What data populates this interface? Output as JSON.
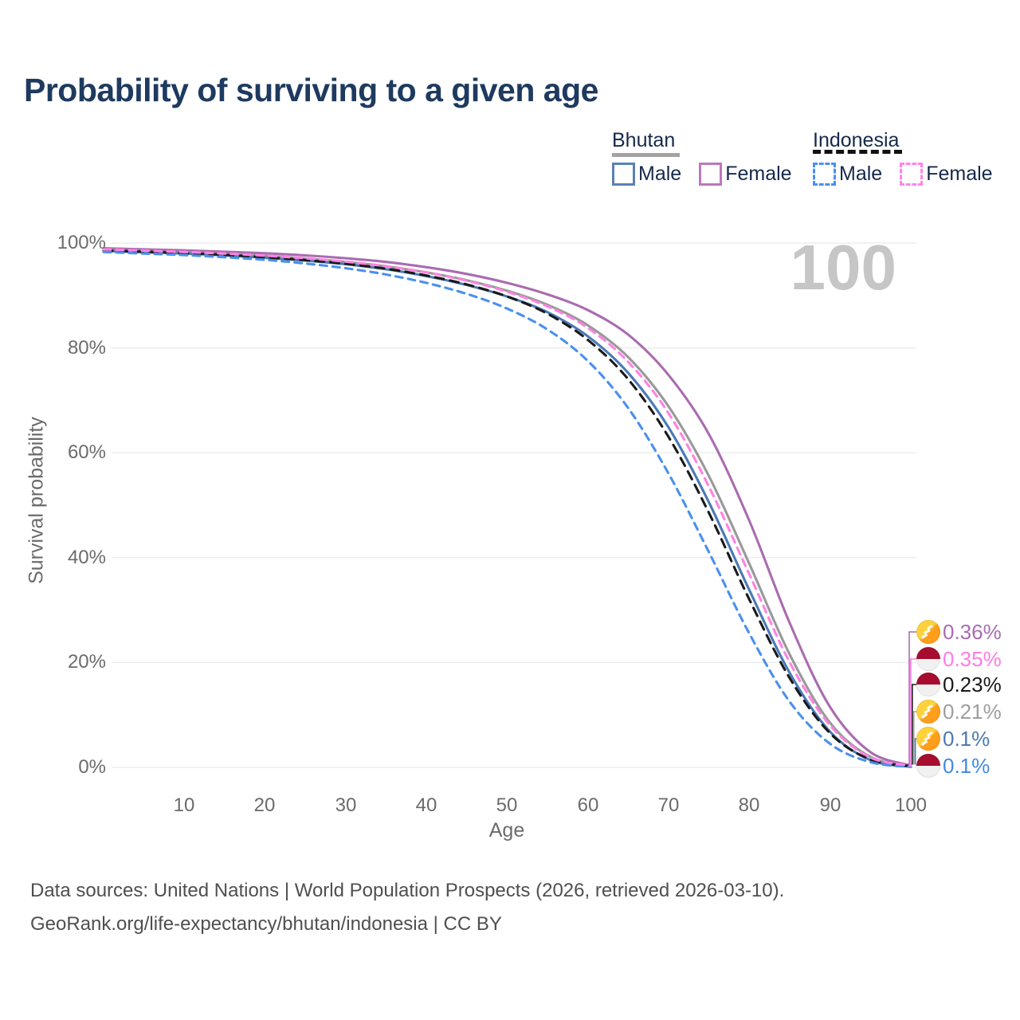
{
  "title": "Probability of surviving to a given age",
  "watermark_age": "100",
  "legend": {
    "groups": [
      {
        "label": "Bhutan",
        "line_style": "solid",
        "items": [
          {
            "label": "Male",
            "color": "#5a81b4"
          },
          {
            "label": "Female",
            "color": "#bd77bd"
          }
        ]
      },
      {
        "label": "Indonesia",
        "line_style": "dashed",
        "items": [
          {
            "label": "Male",
            "color": "#4a90ee"
          },
          {
            "label": "Female",
            "color": "#ff85e6"
          }
        ]
      }
    ]
  },
  "chart_data": {
    "type": "line",
    "title": "Probability of surviving to a given age",
    "xlabel": "Age",
    "ylabel": "Survival probability",
    "xlim": [
      0,
      100
    ],
    "ylim": [
      0,
      100
    ],
    "grid": "horizontal",
    "legend_position": "top-right",
    "xticklabels": [
      "10",
      "20",
      "30",
      "40",
      "50",
      "60",
      "70",
      "80",
      "90",
      "100"
    ],
    "xticks": [
      10,
      20,
      30,
      40,
      50,
      60,
      70,
      80,
      90,
      100
    ],
    "yticklabels": [
      "0%",
      "20%",
      "40%",
      "60%",
      "80%",
      "100%"
    ],
    "yticks": [
      0,
      20,
      40,
      60,
      80,
      100
    ],
    "x": [
      0,
      5,
      10,
      15,
      20,
      25,
      30,
      35,
      40,
      45,
      50,
      55,
      60,
      65,
      70,
      75,
      80,
      85,
      90,
      95,
      100
    ],
    "series": [
      {
        "name": "Bhutan Total",
        "country": "Bhutan",
        "group": "Total",
        "color": "#999999",
        "dash": "solid",
        "values": [
          98.7,
          98.5,
          98.25,
          97.95,
          97.55,
          97.05,
          96.4,
          95.55,
          94.4,
          92.9,
          90.9,
          88.2,
          84.3,
          78.2,
          68.8,
          55.5,
          38.8,
          21.5,
          8.5,
          2.0,
          0.21
        ]
      },
      {
        "name": "Bhutan Female",
        "country": "Bhutan",
        "group": "Female",
        "color": "#a96cb0",
        "dash": "solid",
        "values": [
          99.0,
          98.8,
          98.6,
          98.35,
          98.05,
          97.65,
          97.1,
          96.4,
          95.4,
          94.1,
          92.4,
          90.2,
          87.2,
          82.5,
          74.8,
          63.5,
          47.0,
          27.5,
          11.5,
          2.9,
          0.36
        ]
      },
      {
        "name": "Bhutan Male",
        "country": "Bhutan",
        "group": "Male",
        "color": "#4a7ab5",
        "dash": "solid",
        "values": [
          98.5,
          98.25,
          98.0,
          97.65,
          97.2,
          96.65,
          95.95,
          95.0,
          93.7,
          92.0,
          89.8,
          86.8,
          82.2,
          75.2,
          64.8,
          50.5,
          33.8,
          18.0,
          6.8,
          1.4,
          0.1
        ]
      },
      {
        "name": "Indonesia Total",
        "country": "Indonesia",
        "group": "Total",
        "color": "#1a1a1a",
        "dash": "dashed",
        "values": [
          98.6,
          98.35,
          98.1,
          97.75,
          97.3,
          96.75,
          96.05,
          95.1,
          93.8,
          92.1,
          89.8,
          86.5,
          81.5,
          74.0,
          63.0,
          48.5,
          32.0,
          17.0,
          6.5,
          1.5,
          0.23
        ]
      },
      {
        "name": "Indonesia Male",
        "country": "Indonesia",
        "group": "Male",
        "color": "#4a90ee",
        "dash": "dashed",
        "values": [
          98.3,
          98.0,
          97.7,
          97.3,
          96.8,
          96.1,
          95.2,
          94.0,
          92.4,
          90.3,
          87.5,
          83.5,
          77.5,
          68.5,
          56.0,
          41.0,
          25.5,
          12.5,
          4.5,
          1.0,
          0.1
        ]
      },
      {
        "name": "Indonesia Female",
        "country": "Indonesia",
        "group": "Female",
        "color": "#ff82e3",
        "dash": "dashed",
        "values": [
          98.8,
          98.55,
          98.3,
          98.0,
          97.6,
          97.1,
          96.45,
          95.6,
          94.4,
          92.8,
          90.7,
          87.9,
          83.8,
          77.3,
          67.5,
          53.5,
          36.8,
          20.0,
          8.0,
          1.9,
          0.35
        ]
      }
    ]
  },
  "end_labels": [
    {
      "flag": "bhutan",
      "series_name": "Bhutan Female",
      "value": "0.36%",
      "color": "#a96cb0"
    },
    {
      "flag": "indonesia",
      "series_name": "Indonesia Female",
      "value": "0.35%",
      "color": "#ff7ce4"
    },
    {
      "flag": "indonesia",
      "series_name": "Indonesia Total",
      "value": "0.23%",
      "color": "#1a1a1a"
    },
    {
      "flag": "bhutan",
      "series_name": "Bhutan Total",
      "value": "0.21%",
      "color": "#9e9e9e"
    },
    {
      "flag": "bhutan",
      "series_name": "Bhutan Male",
      "value": "0.1%",
      "color": "#4a7ab5"
    },
    {
      "flag": "indonesia",
      "series_name": "Indonesia Male",
      "value": "0.1%",
      "color": "#418ae4"
    }
  ],
  "footer": {
    "line1": "Data sources: United Nations | World Population Prospects (2026, retrieved 2026-03-10).",
    "line2": "GeoRank.org/life-expectancy/bhutan/indonesia | CC BY"
  },
  "colors": {
    "title_text": "#1e3a5f",
    "axis_text": "#6b6b6b",
    "gridline": "#e9e9e9",
    "watermark": "#c6c6c6",
    "footer_text": "#4f4f4f"
  }
}
